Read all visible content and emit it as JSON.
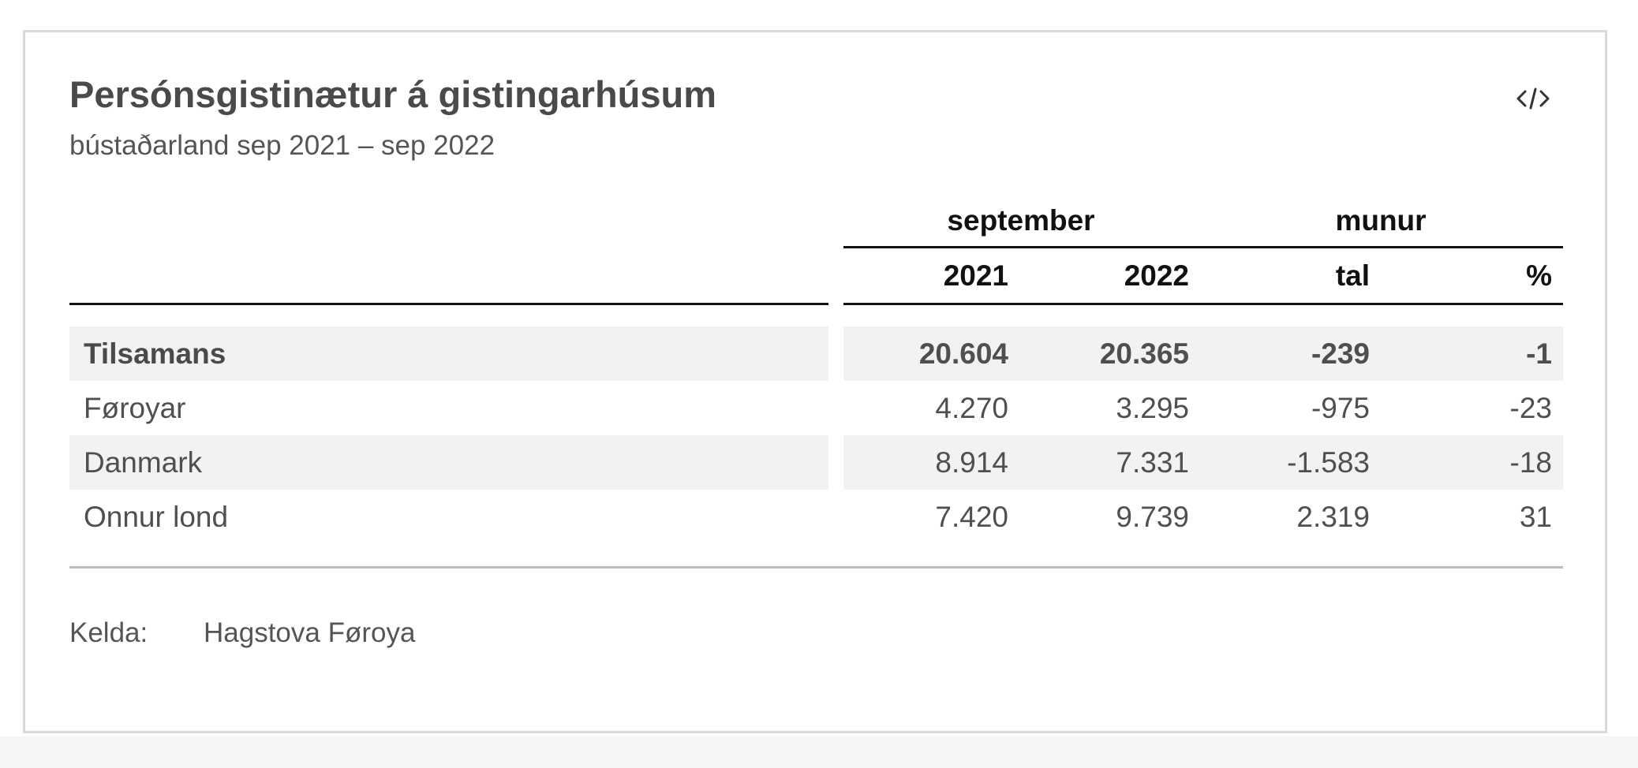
{
  "title": "Persónsgistinætur á gistingarhúsum",
  "subtitle": "bústaðarland sep 2021 – sep 2022",
  "embed_icon": "code-embed-icon",
  "table": {
    "group_headers": {
      "period": "september",
      "difference": "munur"
    },
    "column_headers": {
      "y2021": "2021",
      "y2022": "2022",
      "tal": "tal",
      "pct": "%"
    },
    "rows": [
      {
        "label": "Tilsamans",
        "y2021": "20.604",
        "y2022": "20.365",
        "tal": "-239",
        "pct": "-1"
      },
      {
        "label": "Føroyar",
        "y2021": "4.270",
        "y2022": "3.295",
        "tal": "-975",
        "pct": "-23"
      },
      {
        "label": "Danmark",
        "y2021": "8.914",
        "y2022": "7.331",
        "tal": "-1.583",
        "pct": "-18"
      },
      {
        "label": "Onnur lond",
        "y2021": "7.420",
        "y2022": "9.739",
        "tal": "2.319",
        "pct": "31"
      }
    ]
  },
  "source": {
    "label": "Kelda:",
    "value": "Hagstova Føroya"
  }
}
